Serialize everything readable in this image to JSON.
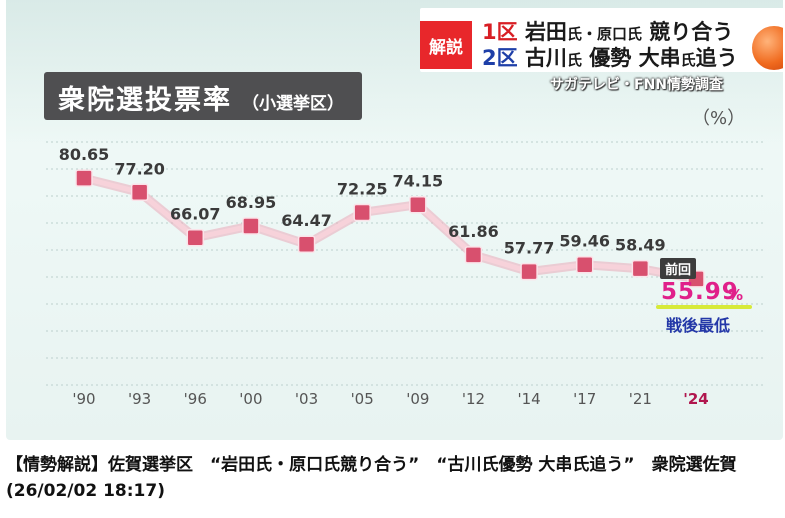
{
  "overlay": {
    "tag": "解説",
    "line1": {
      "num": "1区",
      "a": "岩田",
      "b": "氏・原口",
      "c": "氏",
      "d": "競り合う"
    },
    "line2": {
      "num": "2区",
      "a": "古川",
      "b": "氏",
      "c": "優勢 大串",
      "d": "氏",
      "e": "追う"
    },
    "source": "サガテレビ・FNN情勢調査"
  },
  "chart_data": {
    "type": "line",
    "title": "衆院選投票率",
    "subtitle": "（小選挙区）",
    "unit": "（%）",
    "categories": [
      "'90",
      "'93",
      "'96",
      "'00",
      "'03",
      "'05",
      "'09",
      "'12",
      "'14",
      "'17",
      "'21",
      "'24"
    ],
    "values": [
      80.65,
      77.2,
      66.07,
      68.95,
      64.47,
      72.25,
      74.15,
      61.86,
      57.77,
      59.46,
      58.49,
      55.99
    ],
    "labels": [
      "80.65",
      "77.20",
      "66.07",
      "68.95",
      "64.47",
      "72.25",
      "74.15",
      "61.86",
      "57.77",
      "59.46",
      "58.49",
      "55.99"
    ],
    "ylim": [
      30,
      90
    ],
    "grid": true,
    "highlight": {
      "badge": "前回",
      "value": "55.99",
      "suffix": "%",
      "note": "戦後最低"
    },
    "colors": {
      "line": "#f7d2da",
      "marker": "#d8506e",
      "last_tick": "#b0164e"
    }
  },
  "headline": "【情勢解説】佐賀選挙区　“岩田氏・原口氏競り合う”　“古川氏優勢 大串氏追う”　衆院選佐賀 (26/02/02 18:17)"
}
